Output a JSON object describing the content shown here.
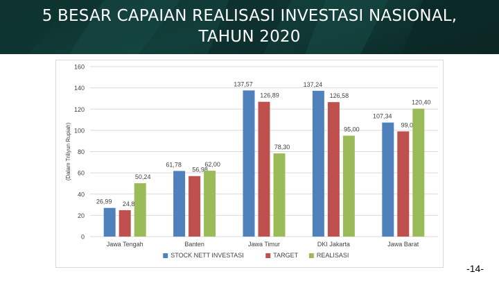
{
  "slide": {
    "title_line1": "5 BESAR CAPAIAN REALISASI INVESTASI NASIONAL,",
    "title_line2": "TAHUN 2020",
    "page_number": "-14-"
  },
  "colors": {
    "banner_bg": "#123f3b",
    "series_stock": "#4f81bd",
    "series_target": "#c0504d",
    "series_realisasi": "#9bbb59",
    "gridline": "#d9d9d9",
    "axis_text": "#404040"
  },
  "chart_data": {
    "type": "bar",
    "title": "",
    "xlabel": "",
    "ylabel": "(Dalam Triliyun Rupiah)",
    "ylim": [
      0,
      160
    ],
    "yticks": [
      "0",
      "20",
      "40",
      "60",
      "80",
      "100",
      "120",
      "140",
      "160"
    ],
    "grid": true,
    "legend_position": "bottom",
    "categories": [
      "Jawa Tengah",
      "Banten",
      "Jawa Timur",
      "DKI Jakarta",
      "Jawa Barat"
    ],
    "series": [
      {
        "name": "STOCK NETT INVESTASI",
        "values": [
          26.99,
          61.78,
          137.57,
          137.24,
          107.34
        ],
        "labels": [
          "26,99",
          "61,78",
          "137,57",
          "137,24",
          "107,34"
        ]
      },
      {
        "name": "TARGET",
        "values": [
          24.89,
          56.98,
          126.89,
          126.58,
          99.01
        ],
        "labels": [
          "24,89",
          "56,98",
          "126,89",
          "126,58",
          "99,01"
        ]
      },
      {
        "name": "REALISASI",
        "values": [
          50.24,
          62.0,
          78.3,
          95.0,
          120.4
        ],
        "labels": [
          "50,24",
          "62,00",
          "78,30",
          "95,00",
          "120,40"
        ]
      }
    ]
  }
}
